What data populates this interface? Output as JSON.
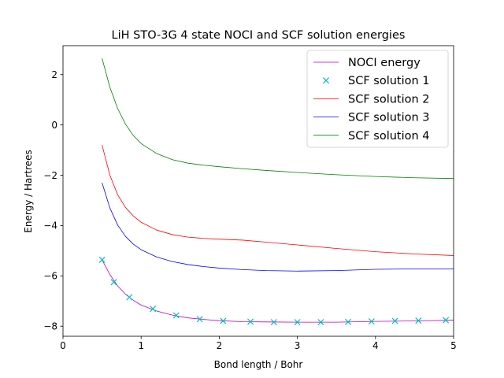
{
  "chart_data": {
    "type": "line",
    "title": "LiH STO-3G 4 state NOCI and SCF solution energies",
    "xlabel": "Bond length / Bohr",
    "ylabel": "Energy / Hartrees",
    "xlim": [
      0,
      5
    ],
    "ylim": [
      -8.4,
      3.15
    ],
    "x_ticks": [
      0,
      1,
      2,
      3,
      4,
      5
    ],
    "y_ticks": [
      -8,
      -6,
      -4,
      -2,
      0,
      2
    ],
    "grid": false,
    "legend_position": "top-right",
    "series": [
      {
        "name": "NOCI energy",
        "style": "line",
        "color": "#bf00bf",
        "x": [
          0.5,
          0.6,
          0.7,
          0.8,
          0.9,
          1.0,
          1.2,
          1.4,
          1.6,
          1.8,
          2.0,
          2.3,
          2.6,
          3.0,
          3.5,
          4.0,
          4.5,
          5.0
        ],
        "y": [
          -5.36,
          -5.95,
          -6.4,
          -6.73,
          -6.97,
          -7.16,
          -7.4,
          -7.56,
          -7.67,
          -7.73,
          -7.78,
          -7.82,
          -7.83,
          -7.84,
          -7.84,
          -7.81,
          -7.79,
          -7.76
        ]
      },
      {
        "name": "SCF solution 1",
        "style": "marker",
        "marker": "x",
        "color": "#00bfbf",
        "x": [
          0.5,
          0.65,
          0.85,
          1.15,
          1.45,
          1.75,
          2.05,
          2.4,
          2.7,
          3.0,
          3.3,
          3.65,
          3.95,
          4.25,
          4.55,
          4.9
        ],
        "y": [
          -5.36,
          -6.25,
          -6.85,
          -7.31,
          -7.57,
          -7.72,
          -7.79,
          -7.82,
          -7.84,
          -7.84,
          -7.84,
          -7.83,
          -7.81,
          -7.79,
          -7.78,
          -7.76
        ]
      },
      {
        "name": "SCF solution 2",
        "style": "line",
        "color": "#ff0000",
        "x": [
          0.5,
          0.6,
          0.7,
          0.8,
          0.9,
          1.0,
          1.2,
          1.4,
          1.6,
          1.8,
          2.0,
          2.3,
          2.6,
          3.0,
          3.5,
          4.0,
          4.5,
          5.0
        ],
        "y": [
          -0.8,
          -2.0,
          -2.78,
          -3.28,
          -3.62,
          -3.87,
          -4.18,
          -4.36,
          -4.46,
          -4.51,
          -4.54,
          -4.58,
          -4.66,
          -4.77,
          -4.91,
          -5.04,
          -5.13,
          -5.19
        ]
      },
      {
        "name": "SCF solution 3",
        "style": "line",
        "color": "#0000ff",
        "x": [
          0.5,
          0.6,
          0.7,
          0.8,
          0.9,
          1.0,
          1.2,
          1.4,
          1.6,
          1.8,
          2.0,
          2.3,
          2.6,
          3.0,
          3.5,
          4.0,
          4.5,
          5.0
        ],
        "y": [
          -2.3,
          -3.3,
          -3.98,
          -4.43,
          -4.74,
          -4.96,
          -5.25,
          -5.43,
          -5.55,
          -5.63,
          -5.69,
          -5.75,
          -5.79,
          -5.81,
          -5.79,
          -5.74,
          -5.72,
          -5.72
        ]
      },
      {
        "name": "SCF solution 4",
        "style": "line",
        "color": "#008000",
        "x": [
          0.5,
          0.6,
          0.7,
          0.8,
          0.9,
          1.0,
          1.2,
          1.4,
          1.6,
          1.8,
          2.0,
          2.3,
          2.6,
          3.0,
          3.5,
          4.0,
          4.5,
          5.0
        ],
        "y": [
          2.65,
          1.5,
          0.65,
          0.03,
          -0.42,
          -0.74,
          -1.14,
          -1.38,
          -1.52,
          -1.6,
          -1.66,
          -1.74,
          -1.81,
          -1.89,
          -1.98,
          -2.05,
          -2.1,
          -2.13
        ]
      }
    ]
  }
}
